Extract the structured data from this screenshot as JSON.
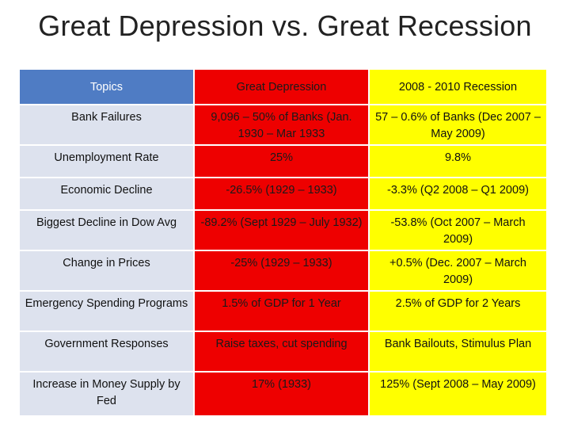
{
  "title": "Great Depression vs. Great Recession",
  "table": {
    "headers": [
      "Topics",
      "Great Depression",
      "2008 - 2010 Recession"
    ],
    "rows": [
      [
        "Bank Failures",
        "9,096 – 50% of Banks (Jan. 1930 – Mar 1933",
        "57 – 0.6% of Banks (Dec 2007 – May 2009)"
      ],
      [
        "Unemployment Rate",
        "25%",
        "9.8%"
      ],
      [
        "Economic Decline",
        "-26.5% (1929 – 1933)",
        "-3.3% (Q2 2008 – Q1 2009)"
      ],
      [
        "Biggest Decline in Dow Avg",
        "-89.2% (Sept 1929 – July 1932)",
        "-53.8% (Oct 2007 – March 2009)"
      ],
      [
        "Change in Prices",
        "-25% (1929 – 1933)",
        "+0.5% (Dec. 2007 – March 2009)"
      ],
      [
        "Emergency Spending Programs",
        "1.5% of GDP for 1 Year",
        "2.5% of GDP for 2 Years"
      ],
      [
        "Government Responses",
        "Raise taxes, cut spending",
        "Bank Bailouts, Stimulus Plan"
      ],
      [
        "Increase in Money Supply by Fed",
        "17% (1933)",
        "125% (Sept 2008 – May 2009)"
      ]
    ]
  },
  "colors": {
    "header_blue": "#4f7cc4",
    "topic_gray": "#dde2ee",
    "depression_red": "#ee0000",
    "recession_yellow": "#ffff00"
  }
}
